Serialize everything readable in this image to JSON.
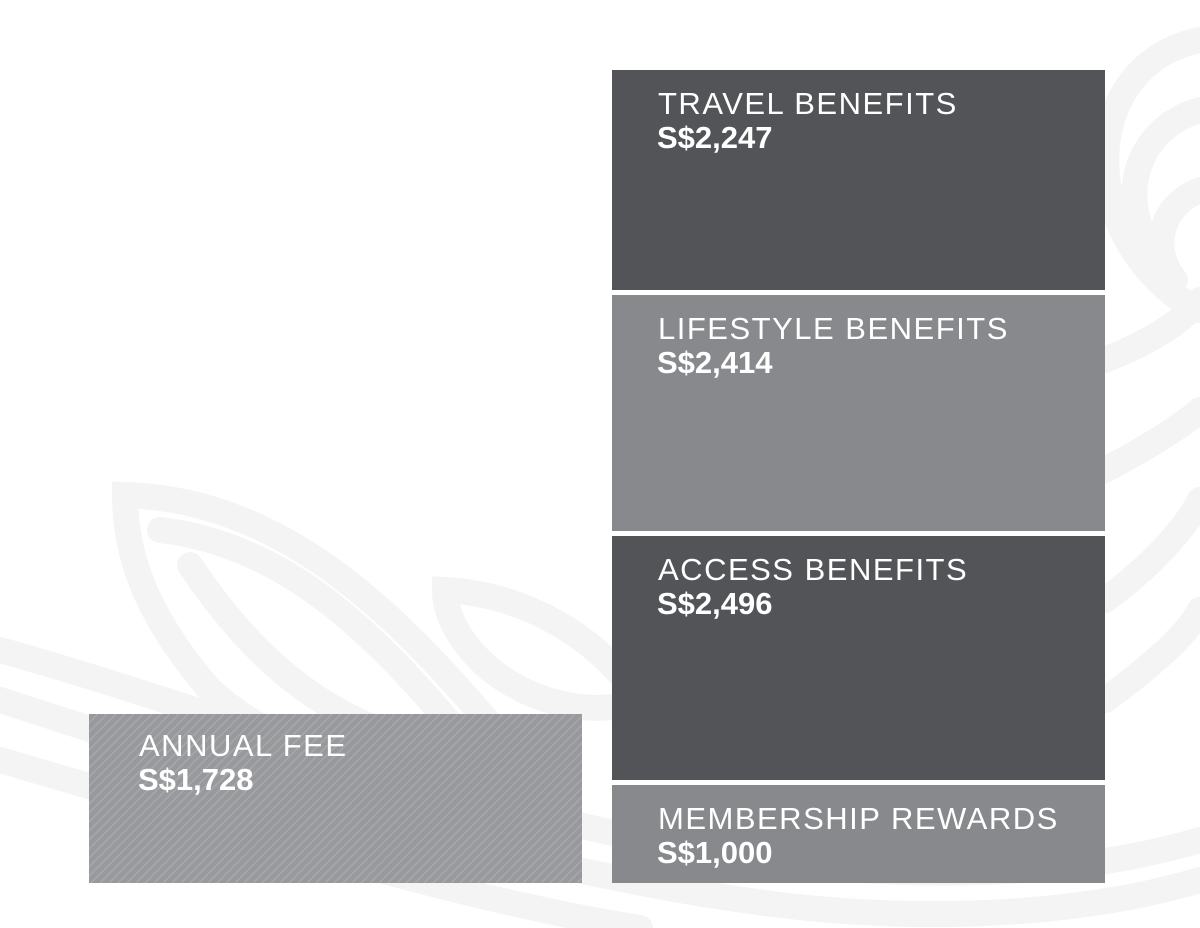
{
  "chart_data": {
    "type": "bar",
    "unit": "S$",
    "annual_fee": {
      "label": "ANNUAL FEE",
      "value": 1728,
      "display": "S$1,728",
      "color": "#98999c",
      "pattern": "diagonal-hatch"
    },
    "benefits_stack": [
      {
        "label": "MEMBERSHIP REWARDS",
        "value": 1000,
        "display": "S$1,000",
        "color": "#87898c"
      },
      {
        "label": "ACCESS BENEFITS",
        "value": 2496,
        "display": "S$2,496",
        "color": "#525458"
      },
      {
        "label": "LIFESTYLE BENEFITS",
        "value": 2414,
        "display": "S$2,414",
        "color": "#87898c"
      },
      {
        "label": "TRAVEL BENEFITS",
        "value": 2247,
        "display": "S$2,247",
        "color": "#525458"
      }
    ]
  },
  "colors": {
    "background": "#ffffff",
    "watermark": "#f4f4f4",
    "text": "#ffffff"
  },
  "watermark_icon": "leaf-swirl-watermark"
}
